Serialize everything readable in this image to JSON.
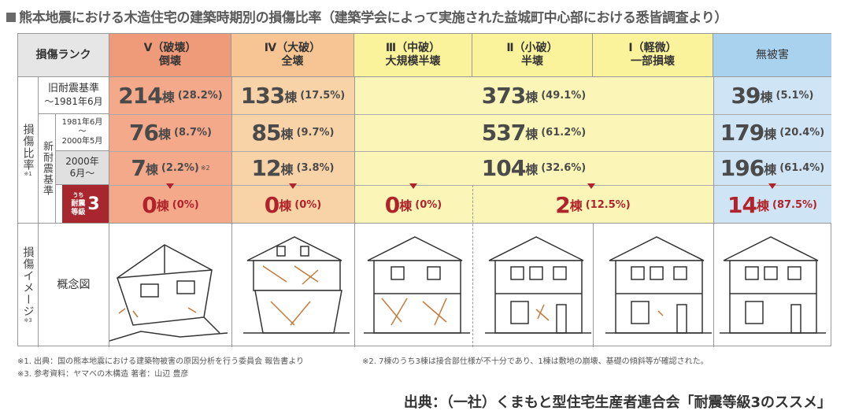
{
  "title": "熊本地震における木造住宅の建築時期別の損傷比率（建築学会によって実施された益城町中心部における悉皆調査より）",
  "header": {
    "rank_label": "損傷ランク",
    "columns": [
      {
        "line1": "Ⅴ（破壊）",
        "line2": "倒壊"
      },
      {
        "line1": "Ⅳ（大破）",
        "line2": "全壊"
      },
      {
        "line1": "Ⅲ（中破）",
        "line2": "大規模半壊"
      },
      {
        "line1": "Ⅱ（小破）",
        "line2": "半壊"
      },
      {
        "line1": "Ⅰ（軽微）",
        "line2": "一部損壊"
      },
      {
        "line1": "無被害",
        "line2": ""
      }
    ]
  },
  "side": {
    "damage_ratio": "損傷比率",
    "damage_ratio_note": "※1",
    "new_standard": "新耐震基準",
    "old_standard_line1": "旧耐震基準",
    "old_standard_line2": "〜1981年6月",
    "new1_line1": "1981年6月",
    "new1_line2": "〜",
    "new1_line3": "2000年5月",
    "new2_line1": "2000年",
    "new2_line2": "6月〜",
    "grade3_prefix": "うち",
    "grade3_line1": "耐震",
    "grade3_line2": "等級",
    "grade3_num": "3",
    "image_label": "損傷イメージ",
    "image_note": "※3",
    "concept_label": "概念図"
  },
  "rows": {
    "old": {
      "v": {
        "n": "214",
        "u": "棟",
        "p": "(28.2%)"
      },
      "iv": {
        "n": "133",
        "u": "棟",
        "p": "(17.5%)"
      },
      "mid": {
        "n": "373",
        "u": "棟",
        "p": "(49.1%)"
      },
      "none": {
        "n": "39",
        "u": "棟",
        "p": "(5.1%)"
      }
    },
    "new1": {
      "v": {
        "n": "76",
        "u": "棟",
        "p": "(8.7%)"
      },
      "iv": {
        "n": "85",
        "u": "棟",
        "p": "(9.7%)"
      },
      "mid": {
        "n": "537",
        "u": "棟",
        "p": "(61.2%)"
      },
      "none": {
        "n": "179",
        "u": "棟",
        "p": "(20.4%)"
      }
    },
    "new2": {
      "v": {
        "n": "7",
        "u": "棟",
        "p": "(2.2%)",
        "note": "※2"
      },
      "iv": {
        "n": "12",
        "u": "棟",
        "p": "(3.8%)"
      },
      "mid": {
        "n": "104",
        "u": "棟",
        "p": "(32.6%)"
      },
      "none": {
        "n": "196",
        "u": "棟",
        "p": "(61.4%)"
      }
    },
    "grade3": {
      "v": {
        "n": "0",
        "u": "棟",
        "p": "(0%)"
      },
      "iv": {
        "n": "0",
        "u": "棟",
        "p": "(0%)"
      },
      "iii": {
        "n": "0",
        "u": "棟",
        "p": "(0%)"
      },
      "ii_i": {
        "n": "2",
        "u": "棟",
        "p": "(12.5%)"
      },
      "none": {
        "n": "14",
        "u": "棟",
        "p": "(87.5%)"
      }
    }
  },
  "footnotes": {
    "n1": "※1. 出典：国の熊本地震における建築物被害の原因分析を行う委員会 報告書より",
    "n2": "※2. 7棟のうち3棟は接合部仕様が不十分であり、1棟は敷地の崩壊、基礎の傾斜等が確認された。",
    "n3": "※3. 参考資料：ヤマベの木構造 著者：山辺 豊彦"
  },
  "source": "出典：（一社）くまもと型住宅生産者連合会「耐震等級3のススメ」",
  "colors": {
    "col_v": "#f3a98a",
    "col_iv": "#f8d3a8",
    "col_mid": "#fbf6b8",
    "col_none": "#cfe5f5",
    "hdr_v": "#ef9a78",
    "hdr_iv": "#f6c593",
    "hdr_mid": "#fbf39c",
    "hdr_none": "#a9d2ef",
    "grade3_bg": "#a8262e",
    "accent_red": "#b0232a"
  }
}
